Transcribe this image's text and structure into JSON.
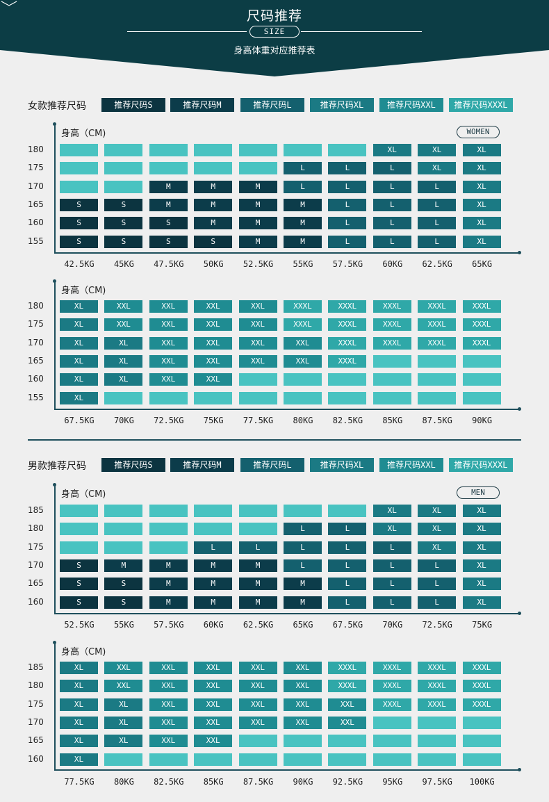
{
  "header": {
    "title": "尺码推荐",
    "pill": "SIZE",
    "subtitle": "身高体重对应推荐表"
  },
  "colors": {
    "S": "#0c3440",
    "M": "#0c3c4a",
    "L": "#14606e",
    "XL": "#1b7a84",
    "XXL": "#1f8c92",
    "XXXL": "#2fa8a8",
    "empty": "#49c3c1",
    "banner": "#0c3d45"
  },
  "sections": [
    {
      "id": "women",
      "legend_title": "女款推荐尺码",
      "legend": [
        {
          "label": "推荐尺码S",
          "size": "S"
        },
        {
          "label": "推荐尺码M",
          "size": "M"
        },
        {
          "label": "推荐尺码L",
          "size": "L"
        },
        {
          "label": "推荐尺码XL",
          "size": "XL"
        },
        {
          "label": "推荐尺码XXL",
          "size": "XXL"
        },
        {
          "label": "推荐尺码XXXL",
          "size": "XXXL"
        }
      ],
      "badge": "WOMEN",
      "charts": [
        {
          "ylabel": "身高（CM)",
          "heights": [
            "180",
            "175",
            "170",
            "165",
            "160",
            "155"
          ],
          "weights": [
            "42.5KG",
            "45KG",
            "47.5KG",
            "50KG",
            "52.5KG",
            "55KG",
            "57.5KG",
            "60KG",
            "62.5KG",
            "65KG"
          ],
          "grid": [
            [
              "",
              "",
              "",
              "",
              "",
              "",
              "",
              "XL",
              "XL",
              "XL"
            ],
            [
              "",
              "",
              "",
              "",
              "",
              "L",
              "L",
              "L",
              "XL",
              "XL"
            ],
            [
              "",
              "",
              "M",
              "M",
              "M",
              "L",
              "L",
              "L",
              "L",
              "XL"
            ],
            [
              "S",
              "S",
              "M",
              "M",
              "M",
              "M",
              "L",
              "L",
              "L",
              "XL"
            ],
            [
              "S",
              "S",
              "S",
              "M",
              "M",
              "M",
              "L",
              "L",
              "L",
              "XL"
            ],
            [
              "S",
              "S",
              "S",
              "S",
              "M",
              "M",
              "L",
              "L",
              "L",
              "XL"
            ]
          ]
        },
        {
          "ylabel": "身高（CM)",
          "heights": [
            "180",
            "175",
            "170",
            "165",
            "160",
            "155"
          ],
          "weights": [
            "67.5KG",
            "70KG",
            "72.5KG",
            "75KG",
            "77.5KG",
            "80KG",
            "82.5KG",
            "85KG",
            "87.5KG",
            "90KG"
          ],
          "grid": [
            [
              "XL",
              "XXL",
              "XXL",
              "XXL",
              "XXL",
              "XXXL",
              "XXXL",
              "XXXL",
              "XXXL",
              "XXXL"
            ],
            [
              "XL",
              "XXL",
              "XXL",
              "XXL",
              "XXL",
              "XXXL",
              "XXXL",
              "XXXL",
              "XXXL",
              "XXXL"
            ],
            [
              "XL",
              "XL",
              "XXL",
              "XXL",
              "XXL",
              "XXL",
              "XXXL",
              "XXXL",
              "XXXL",
              "XXXL"
            ],
            [
              "XL",
              "XL",
              "XXL",
              "XXL",
              "XXL",
              "XXL",
              "XXXL",
              "",
              "",
              ""
            ],
            [
              "XL",
              "XL",
              "XXL",
              "XXL",
              "",
              "",
              "",
              "",
              "",
              ""
            ],
            [
              "XL",
              "",
              "",
              "",
              "",
              "",
              "",
              "",
              "",
              ""
            ]
          ]
        }
      ]
    },
    {
      "id": "men",
      "legend_title": "男款推荐尺码",
      "legend": [
        {
          "label": "推荐尺码S",
          "size": "S"
        },
        {
          "label": "推荐尺码M",
          "size": "M"
        },
        {
          "label": "推荐尺码L",
          "size": "L"
        },
        {
          "label": "推荐尺码XL",
          "size": "XL"
        },
        {
          "label": "推荐尺码XXL",
          "size": "XXL"
        },
        {
          "label": "推荐尺码XXXL",
          "size": "XXXL"
        }
      ],
      "badge": "MEN",
      "charts": [
        {
          "ylabel": "身高（CM)",
          "heights": [
            "185",
            "180",
            "175",
            "170",
            "165",
            "160"
          ],
          "weights": [
            "52.5KG",
            "55KG",
            "57.5KG",
            "60KG",
            "62.5KG",
            "65KG",
            "67.5KG",
            "70KG",
            "72.5KG",
            "75KG"
          ],
          "grid": [
            [
              "",
              "",
              "",
              "",
              "",
              "",
              "",
              "XL",
              "XL",
              "XL"
            ],
            [
              "",
              "",
              "",
              "",
              "",
              "L",
              "L",
              "XL",
              "XL",
              "XL"
            ],
            [
              "",
              "",
              "",
              "L",
              "L",
              "L",
              "L",
              "L",
              "XL",
              "XL"
            ],
            [
              "S",
              "M",
              "M",
              "M",
              "M",
              "L",
              "L",
              "L",
              "L",
              "XL"
            ],
            [
              "S",
              "S",
              "M",
              "M",
              "M",
              "M",
              "L",
              "L",
              "L",
              "XL"
            ],
            [
              "S",
              "S",
              "M",
              "M",
              "M",
              "M",
              "L",
              "L",
              "L",
              "XL"
            ]
          ]
        },
        {
          "ylabel": "身高（CM)",
          "heights": [
            "185",
            "180",
            "175",
            "170",
            "165",
            "160"
          ],
          "weights": [
            "77.5KG",
            "80KG",
            "82.5KG",
            "85KG",
            "87.5KG",
            "90KG",
            "92.5KG",
            "95KG",
            "97.5KG",
            "100KG"
          ],
          "grid": [
            [
              "XL",
              "XXL",
              "XXL",
              "XXL",
              "XXL",
              "XXL",
              "XXXL",
              "XXXL",
              "XXXL",
              "XXXL"
            ],
            [
              "XL",
              "XXL",
              "XXL",
              "XXL",
              "XXL",
              "XXL",
              "XXXL",
              "XXXL",
              "XXXL",
              "XXXL"
            ],
            [
              "XL",
              "XL",
              "XXL",
              "XXL",
              "XXL",
              "XXL",
              "XXL",
              "XXXL",
              "XXXL",
              "XXXL"
            ],
            [
              "XL",
              "XL",
              "XXL",
              "XXL",
              "XXL",
              "XXL",
              "XXL",
              "",
              "",
              ""
            ],
            [
              "XL",
              "XL",
              "XXL",
              "XXL",
              "",
              "",
              "",
              "",
              "",
              ""
            ],
            [
              "XL",
              "",
              "",
              "",
              "",
              "",
              "",
              "",
              "",
              ""
            ]
          ]
        }
      ]
    }
  ]
}
